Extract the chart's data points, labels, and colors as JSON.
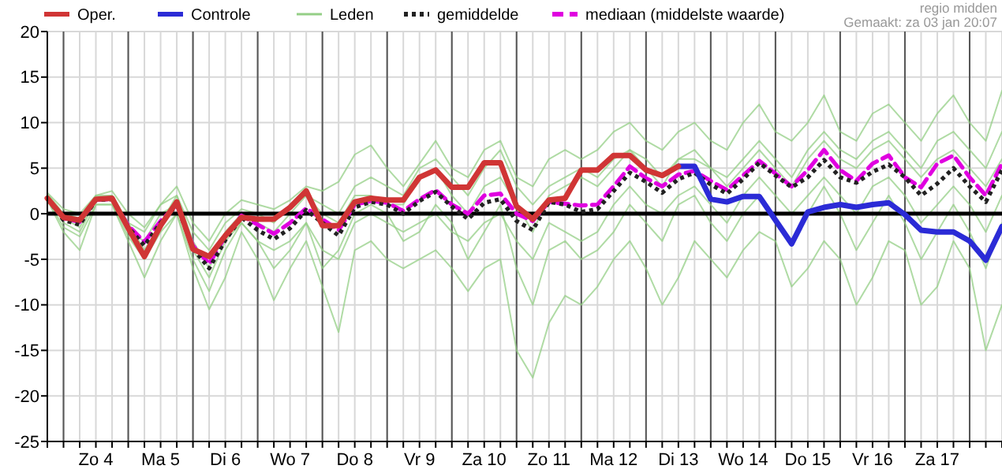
{
  "chart_data": {
    "type": "line",
    "annotations": [
      "regio midden",
      "Gemaakt: za 03 jan 20:07"
    ],
    "categories": [
      null,
      null,
      null,
      "Zo 4",
      null,
      null,
      null,
      "Ma 5",
      null,
      null,
      null,
      "Di 6",
      null,
      null,
      null,
      "Wo 7",
      null,
      null,
      null,
      "Do 8",
      null,
      null,
      null,
      "Vr 9",
      null,
      null,
      null,
      "Za 10",
      null,
      null,
      null,
      "Zo 11",
      null,
      null,
      null,
      "Ma 12",
      null,
      null,
      null,
      "Di 13",
      null,
      null,
      null,
      "Wo 14",
      null,
      null,
      null,
      "Do 15",
      null,
      null,
      null,
      "Vr 16",
      null,
      null,
      null,
      "Za 17",
      null,
      null,
      null,
      null
    ],
    "ylim": [
      -25,
      20
    ],
    "yticks": [
      -25,
      -20,
      -15,
      -10,
      -5,
      0,
      5,
      10,
      15,
      20
    ],
    "grid": true,
    "legend": "top",
    "ref_lines": [
      {
        "axis": "y",
        "value": 0,
        "color": "#000000"
      }
    ],
    "series": [
      {
        "name": "Oper.",
        "color": "#d03535",
        "line_style": "solid",
        "values": [
          1.7,
          -0.4,
          -0.7,
          1.6,
          1.7,
          -1.6,
          -4.7,
          -1.3,
          1.3,
          -3.9,
          -4.7,
          -2.4,
          -0.4,
          -0.6,
          -0.6,
          0.7,
          2.5,
          -1.3,
          -1.3,
          1.3,
          1.7,
          1.5,
          1.5,
          4.0,
          4.8,
          2.9,
          2.9,
          5.6,
          5.6,
          0.8,
          -0.6,
          1.5,
          1.7,
          4.8,
          4.8,
          6.4,
          6.4,
          4.8,
          4.2,
          5.2,
          null,
          null,
          null,
          null,
          null,
          null,
          null,
          null,
          null,
          null,
          null,
          null,
          null,
          null,
          null,
          null,
          null,
          null,
          null,
          null
        ]
      },
      {
        "name": "Controle",
        "color": "#2b2bd6",
        "line_style": "solid",
        "values": [
          null,
          null,
          null,
          null,
          null,
          null,
          null,
          null,
          null,
          null,
          null,
          null,
          null,
          null,
          null,
          null,
          null,
          null,
          null,
          null,
          null,
          null,
          null,
          null,
          null,
          null,
          null,
          null,
          null,
          null,
          null,
          null,
          null,
          null,
          null,
          null,
          null,
          null,
          null,
          5.2,
          5.2,
          1.6,
          1.3,
          1.9,
          1.9,
          -0.7,
          -3.3,
          0.2,
          0.7,
          1.0,
          0.7,
          1.0,
          1.2,
          -0.1,
          -1.8,
          -2.0,
          -2.0,
          -3.0,
          -5.1,
          -1.4
        ]
      },
      {
        "name": "Leden",
        "color": "#94cf86",
        "values": [
          2.2,
          0,
          -0.5,
          2,
          2.5,
          0,
          -1.5,
          1,
          3,
          -1,
          -3,
          0,
          1.5,
          1,
          0.5,
          1.5,
          3,
          2.5,
          3.5,
          6.5,
          7.5,
          5,
          3,
          5.5,
          8,
          5,
          4,
          7,
          8,
          4,
          3,
          6,
          7,
          6,
          7,
          9,
          10,
          8,
          7,
          9,
          10,
          8,
          7,
          10,
          12,
          9,
          8,
          10,
          13,
          9,
          8,
          11,
          12,
          10,
          8,
          11,
          13,
          10,
          8,
          13.5
        ]
      },
      {
        "color": "#94cf86",
        "values": [
          1.5,
          -2,
          -4,
          1,
          1,
          -3,
          -7,
          -3,
          0,
          -6,
          -10.5,
          -7,
          -2,
          -5,
          -9.5,
          -6,
          -3,
          -8,
          -13,
          -4,
          -3,
          -5,
          -6,
          -5,
          -4,
          -6,
          -8.5,
          -6,
          -5,
          -15,
          -18,
          -12,
          -9,
          -10,
          -8,
          -5,
          -3,
          -6,
          -10,
          -7,
          -3,
          -5,
          -7,
          -4,
          -2,
          -3,
          -8,
          -6,
          -3,
          -5,
          -10,
          -7,
          -3,
          -4,
          -10,
          -8,
          -3,
          -6,
          -15,
          -10
        ]
      },
      {
        "color": "#94cf86",
        "values": [
          2,
          -1,
          -2,
          1.5,
          2,
          -1,
          -4,
          -1,
          2,
          -3,
          -6,
          -2,
          0,
          -1,
          -2,
          0,
          2,
          0,
          -1,
          2,
          2,
          1,
          1,
          4,
          5,
          2,
          0,
          3,
          4,
          1,
          -2,
          2,
          3,
          4,
          3,
          5,
          7,
          5,
          3,
          6,
          6,
          5,
          3,
          5,
          7,
          5,
          3,
          6,
          8,
          6,
          5,
          7,
          8,
          6,
          4,
          6,
          7,
          5,
          3,
          6
        ]
      },
      {
        "color": "#94cf86",
        "values": [
          1.8,
          -0.5,
          -1.5,
          1.5,
          1.5,
          -2,
          -3,
          0,
          1,
          -4,
          -7,
          -3,
          -1,
          -3,
          -4,
          -3,
          -1,
          -4,
          -5,
          -1,
          0,
          -1,
          -2,
          -1,
          0,
          -2,
          -3,
          -1,
          0,
          -3,
          -5,
          -1,
          -2,
          -3,
          -2,
          1,
          3,
          1,
          0,
          2,
          3,
          1,
          -1,
          2,
          4,
          2,
          0,
          2,
          4,
          2,
          0,
          3,
          4,
          2,
          -1,
          1,
          3,
          1,
          -2,
          2
        ]
      },
      {
        "color": "#94cf86",
        "values": [
          2.3,
          0.5,
          0,
          2,
          2,
          -1,
          -2,
          1,
          2,
          -2,
          -4,
          -1,
          0.5,
          0,
          -1,
          1,
          2,
          1,
          0,
          3,
          4,
          3,
          2,
          5,
          6,
          4,
          2,
          5,
          7,
          3,
          1,
          3,
          4,
          5,
          4,
          6,
          7,
          6,
          4,
          6,
          7,
          5,
          4,
          6,
          8,
          6,
          4,
          7,
          9,
          7,
          6,
          8,
          9,
          7,
          5,
          8,
          9,
          7,
          5,
          9
        ]
      },
      {
        "color": "#94cf86",
        "values": [
          1.6,
          -1.5,
          -2.5,
          1,
          1,
          -2.5,
          -5,
          -2,
          0,
          -5,
          -8.5,
          -4,
          -1,
          -3,
          -6,
          -4,
          -1,
          -6,
          -4,
          0,
          1,
          0,
          -3,
          -2,
          1,
          -1,
          -5,
          -2,
          1,
          -6,
          -10,
          -4,
          -3,
          -5,
          -4,
          -2,
          1,
          -1,
          -3,
          1,
          2,
          -1,
          -3,
          0,
          2,
          -1,
          -3,
          0,
          3,
          0,
          -4,
          -1,
          2,
          -1,
          -5,
          -2,
          1,
          -2,
          -6,
          -1
        ]
      },
      {
        "name": "gemiddelde",
        "color": "#222222",
        "line_style": "dotted",
        "values": [
          1.7,
          -0.7,
          -1.2,
          1.5,
          1.6,
          -1.5,
          -3.5,
          -1.0,
          0.9,
          -3.8,
          -6.0,
          -2.9,
          -0.4,
          -1.8,
          -2.8,
          -1.6,
          0.4,
          -1.0,
          -2.4,
          0.7,
          1.3,
          1.0,
          0.0,
          1.4,
          2.4,
          0.8,
          -0.6,
          1.2,
          1.6,
          -0.8,
          -1.8,
          1.3,
          1.0,
          0.2,
          0.5,
          2.5,
          4.5,
          3.5,
          2.3,
          3.8,
          4.5,
          3.2,
          2.2,
          3.8,
          5.6,
          4.2,
          2.9,
          4.0,
          5.9,
          4.0,
          3.4,
          4.6,
          5.4,
          4.0,
          2.0,
          3.3,
          5.0,
          3.0,
          1.3,
          4.8
        ]
      },
      {
        "name": "mediaan (middelste waarde)",
        "color": "#e000e0",
        "line_style": "dashed",
        "values": [
          1.7,
          -0.5,
          -0.9,
          1.5,
          1.6,
          -1.3,
          -3.1,
          -0.8,
          1.0,
          -3.5,
          -5.5,
          -2.5,
          -0.2,
          -1.2,
          -2.2,
          -1.0,
          0.6,
          -0.6,
          -1.8,
          1.0,
          1.4,
          1.2,
          0.3,
          1.6,
          2.6,
          1.0,
          0.0,
          2.0,
          2.2,
          0.0,
          -0.8,
          1.3,
          1.1,
          0.9,
          1.0,
          3.0,
          5.2,
          3.9,
          3.0,
          4.3,
          4.7,
          3.6,
          2.6,
          4.2,
          5.8,
          4.4,
          3.0,
          4.8,
          7.0,
          4.8,
          3.6,
          5.5,
          6.4,
          4.0,
          2.9,
          5.5,
          6.4,
          4.0,
          2.0,
          5.5
        ]
      }
    ]
  }
}
